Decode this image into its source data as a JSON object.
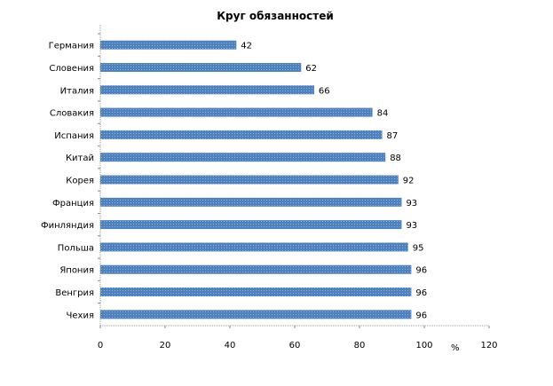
{
  "chart_data": {
    "type": "bar",
    "orientation": "horizontal",
    "title": "Круг обязанностей",
    "xlabel": "%",
    "ylabel": "",
    "xlim": [
      0,
      120
    ],
    "xticks": [
      0,
      20,
      40,
      60,
      80,
      100,
      120
    ],
    "grid": false,
    "legend": "none",
    "bar_color": "#4F81BD",
    "categories": [
      "Германия",
      "Словения",
      "Италия",
      "Словакия",
      "Испания",
      "Китай",
      "Корея",
      "Франция",
      "Финляндия",
      "Польша",
      "Япония",
      "Венгрия",
      "Чехия"
    ],
    "values": [
      42,
      62,
      66,
      84,
      87,
      88,
      92,
      93,
      93,
      95,
      96,
      96,
      96
    ]
  }
}
